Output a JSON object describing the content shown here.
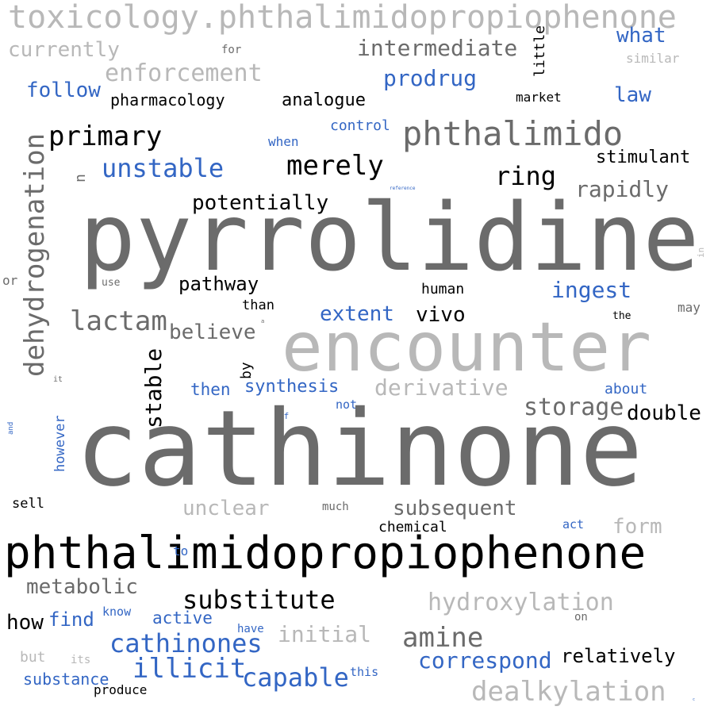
{
  "colors": {
    "black": "#000000",
    "dark_gray": "#6b6b6b",
    "light_gray": "#b8b8b8",
    "blue": "#3366c4"
  },
  "words": [
    {
      "text": "toxicology.phthalimidopropiophenone",
      "color": "light_gray",
      "vertical": false
    },
    {
      "text": "currently",
      "color": "light_gray",
      "vertical": false
    },
    {
      "text": "for",
      "color": "dark_gray",
      "vertical": false
    },
    {
      "text": "intermediate",
      "color": "dark_gray",
      "vertical": false
    },
    {
      "text": "little",
      "color": "black",
      "vertical": true
    },
    {
      "text": "what",
      "color": "blue",
      "vertical": false
    },
    {
      "text": "similar",
      "color": "light_gray",
      "vertical": false
    },
    {
      "text": "enforcement",
      "color": "light_gray",
      "vertical": false
    },
    {
      "text": "prodrug",
      "color": "blue",
      "vertical": false
    },
    {
      "text": "follow",
      "color": "blue",
      "vertical": false
    },
    {
      "text": "pharmacology",
      "color": "black",
      "vertical": false
    },
    {
      "text": "analogue",
      "color": "black",
      "vertical": false
    },
    {
      "text": "market",
      "color": "black",
      "vertical": false
    },
    {
      "text": "law",
      "color": "blue",
      "vertical": false
    },
    {
      "text": "control",
      "color": "blue",
      "vertical": false
    },
    {
      "text": "phthalimido",
      "color": "dark_gray",
      "vertical": false
    },
    {
      "text": "primary",
      "color": "black",
      "vertical": false
    },
    {
      "text": "when",
      "color": "blue",
      "vertical": false
    },
    {
      "text": "dehydrogenation",
      "color": "dark_gray",
      "vertical": true
    },
    {
      "text": "stimulant",
      "color": "black",
      "vertical": false
    },
    {
      "text": "unstable",
      "color": "blue",
      "vertical": false
    },
    {
      "text": "merely",
      "color": "black",
      "vertical": false
    },
    {
      "text": "n",
      "color": "dark_gray",
      "vertical": true
    },
    {
      "text": "ring",
      "color": "black",
      "vertical": false
    },
    {
      "text": "rapidly",
      "color": "dark_gray",
      "vertical": false
    },
    {
      "text": "reference",
      "color": "blue",
      "vertical": false
    },
    {
      "text": "potentially",
      "color": "black",
      "vertical": false
    },
    {
      "text": "pyrrolidine",
      "color": "dark_gray",
      "vertical": false
    },
    {
      "text": "in",
      "color": "light_gray",
      "vertical": true
    },
    {
      "text": "or",
      "color": "dark_gray",
      "vertical": false
    },
    {
      "text": "use",
      "color": "dark_gray",
      "vertical": false
    },
    {
      "text": "pathway",
      "color": "black",
      "vertical": false
    },
    {
      "text": "human",
      "color": "black",
      "vertical": false
    },
    {
      "text": "ingest",
      "color": "blue",
      "vertical": false
    },
    {
      "text": "than",
      "color": "black",
      "vertical": false
    },
    {
      "text": "may",
      "color": "dark_gray",
      "vertical": false
    },
    {
      "text": "lactam",
      "color": "dark_gray",
      "vertical": false
    },
    {
      "text": "extent",
      "color": "blue",
      "vertical": false
    },
    {
      "text": "vivo",
      "color": "black",
      "vertical": false
    },
    {
      "text": "the",
      "color": "black",
      "vertical": false
    },
    {
      "text": "believe",
      "color": "dark_gray",
      "vertical": false
    },
    {
      "text": "a",
      "color": "dark_gray",
      "vertical": false
    },
    {
      "text": "encounter",
      "color": "light_gray",
      "vertical": false
    },
    {
      "text": "stable",
      "color": "black",
      "vertical": true
    },
    {
      "text": "by",
      "color": "black",
      "vertical": true
    },
    {
      "text": "it",
      "color": "dark_gray",
      "vertical": false
    },
    {
      "text": "then",
      "color": "blue",
      "vertical": false
    },
    {
      "text": "synthesis",
      "color": "blue",
      "vertical": false
    },
    {
      "text": "derivative",
      "color": "light_gray",
      "vertical": false
    },
    {
      "text": "about",
      "color": "blue",
      "vertical": false
    },
    {
      "text": "storage",
      "color": "dark_gray",
      "vertical": false
    },
    {
      "text": "double",
      "color": "black",
      "vertical": false
    },
    {
      "text": "of",
      "color": "blue",
      "vertical": false
    },
    {
      "text": "not",
      "color": "blue",
      "vertical": false
    },
    {
      "text": "and",
      "color": "blue",
      "vertical": true
    },
    {
      "text": "however",
      "color": "blue",
      "vertical": true
    },
    {
      "text": "cathinone",
      "color": "dark_gray",
      "vertical": false
    },
    {
      "text": "sell",
      "color": "black",
      "vertical": false
    },
    {
      "text": "unclear",
      "color": "light_gray",
      "vertical": false
    },
    {
      "text": "much",
      "color": "dark_gray",
      "vertical": false
    },
    {
      "text": "subsequent",
      "color": "dark_gray",
      "vertical": false
    },
    {
      "text": "form",
      "color": "light_gray",
      "vertical": false
    },
    {
      "text": "chemical",
      "color": "black",
      "vertical": false
    },
    {
      "text": "act",
      "color": "blue",
      "vertical": false
    },
    {
      "text": "phthalimidopropiophenone",
      "color": "black",
      "vertical": false
    },
    {
      "text": "to",
      "color": "blue",
      "vertical": false
    },
    {
      "text": "metabolic",
      "color": "dark_gray",
      "vertical": false
    },
    {
      "text": "substitute",
      "color": "black",
      "vertical": false
    },
    {
      "text": "hydroxylation",
      "color": "light_gray",
      "vertical": false
    },
    {
      "text": "how",
      "color": "black",
      "vertical": false
    },
    {
      "text": "find",
      "color": "blue",
      "vertical": false
    },
    {
      "text": "know",
      "color": "blue",
      "vertical": false
    },
    {
      "text": "active",
      "color": "blue",
      "vertical": false
    },
    {
      "text": "on",
      "color": "dark_gray",
      "vertical": false
    },
    {
      "text": "cathinones",
      "color": "blue",
      "vertical": false
    },
    {
      "text": "have",
      "color": "blue",
      "vertical": false
    },
    {
      "text": "initial",
      "color": "light_gray",
      "vertical": false
    },
    {
      "text": "amine",
      "color": "dark_gray",
      "vertical": false
    },
    {
      "text": "but",
      "color": "light_gray",
      "vertical": false
    },
    {
      "text": "its",
      "color": "light_gray",
      "vertical": false
    },
    {
      "text": "illicit",
      "color": "blue",
      "vertical": false
    },
    {
      "text": "correspond",
      "color": "blue",
      "vertical": false
    },
    {
      "text": "relatively",
      "color": "black",
      "vertical": false
    },
    {
      "text": "substance",
      "color": "blue",
      "vertical": false
    },
    {
      "text": "capable",
      "color": "blue",
      "vertical": false
    },
    {
      "text": "this",
      "color": "blue",
      "vertical": false
    },
    {
      "text": "produce",
      "color": "black",
      "vertical": false
    },
    {
      "text": "dealkylation",
      "color": "light_gray",
      "vertical": false
    },
    {
      "text": "c",
      "color": "blue",
      "vertical": false
    }
  ]
}
